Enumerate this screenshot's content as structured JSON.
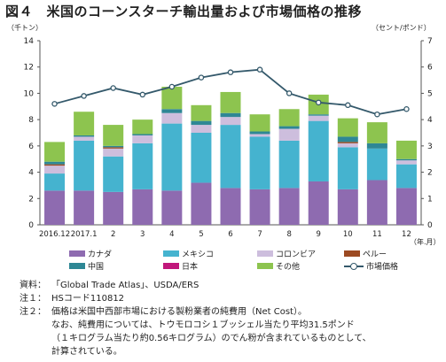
{
  "title": "図４　米国のコーンスターチ輸出量および市場価格の推移",
  "chart_data": {
    "type": "bar",
    "stacked": true,
    "y_left_unit": "（千トン）",
    "y_right_unit": "（セント/ポンド）",
    "x_unit": "（年.月）",
    "ylim_left": [
      0,
      14
    ],
    "yticks_left": [
      "0",
      "2",
      "4",
      "6",
      "8",
      "10",
      "12",
      "14"
    ],
    "ylim_right": [
      0,
      7
    ],
    "yticks_right": [
      "0",
      "1",
      "2",
      "3",
      "4",
      "5",
      "6",
      "7"
    ],
    "grid": false,
    "legend_position": "bottom",
    "categories": [
      "2016.12",
      "2017.1",
      "2",
      "3",
      "4",
      "5",
      "6",
      "7",
      "8",
      "9",
      "10",
      "11",
      "12"
    ],
    "series": [
      {
        "name": "カナダ",
        "color": "#8e6bb0",
        "values": [
          2.6,
          2.6,
          2.5,
          2.7,
          2.6,
          3.2,
          2.8,
          2.7,
          2.8,
          3.3,
          2.7,
          3.4,
          2.8
        ]
      },
      {
        "name": "メキシコ",
        "color": "#45b3cf",
        "values": [
          1.3,
          3.8,
          2.7,
          3.5,
          5.1,
          3.8,
          4.8,
          4.0,
          3.6,
          4.6,
          3.2,
          2.4,
          1.8
        ]
      },
      {
        "name": "コロンビア",
        "color": "#cdbedd",
        "values": [
          0.6,
          0.3,
          0.6,
          0.6,
          0.8,
          0.6,
          0.6,
          0.2,
          0.9,
          0.4,
          0.3,
          0.0,
          0.3
        ]
      },
      {
        "name": "ペルー",
        "color": "#9c4a22",
        "values": [
          0.1,
          0.0,
          0.1,
          0.0,
          0.0,
          0.0,
          0.0,
          0.0,
          0.0,
          0.0,
          0.1,
          0.0,
          0.0
        ]
      },
      {
        "name": "中国",
        "color": "#2e8795",
        "values": [
          0.2,
          0.1,
          0.1,
          0.1,
          0.3,
          0.3,
          0.3,
          0.2,
          0.2,
          0.1,
          0.4,
          0.4,
          0.1
        ]
      },
      {
        "name": "日本",
        "color": "#c1177b",
        "values": [
          0.0,
          0.0,
          0.0,
          0.0,
          0.0,
          0.0,
          0.0,
          0.0,
          0.0,
          0.0,
          0.0,
          0.0,
          0.0
        ]
      },
      {
        "name": "その他",
        "color": "#8dc44f",
        "values": [
          1.5,
          1.8,
          1.6,
          1.1,
          1.7,
          1.2,
          1.6,
          1.3,
          1.3,
          1.5,
          1.4,
          1.6,
          1.4
        ]
      }
    ],
    "line_series": {
      "name": "市場価格",
      "axis": "right",
      "color": "#34596b",
      "values": [
        4.6,
        4.9,
        5.2,
        4.95,
        5.25,
        5.6,
        5.8,
        5.9,
        5.0,
        4.65,
        4.55,
        4.2,
        4.4
      ]
    }
  },
  "notes": [
    {
      "label": "資料：",
      "text": "「Global Trade Atlas」、USDA/ERS"
    },
    {
      "label": "注１：",
      "text": "HSコード110812"
    },
    {
      "label": "注２：",
      "text": "価格は米国中西部市場における製粉業者の純費用（Net Cost）。"
    }
  ],
  "note_cont": [
    "なお、純費用については、トウモロコシ１ブッシェル当たり平均31.5ポンド",
    "（１キログラム当たり約0.56キログラム）のでん粉が含まれているものとして、",
    "計算されている。"
  ]
}
